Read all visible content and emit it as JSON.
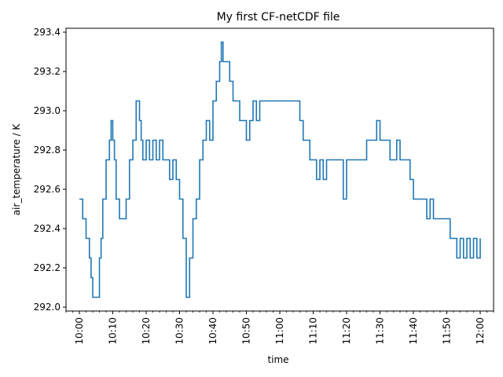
{
  "chart_data": {
    "type": "line",
    "title": "My first CF-netCDF file",
    "xlabel": "time",
    "ylabel": "air_temperature / K",
    "xlim": [
      "09:56",
      "12:04"
    ],
    "ylim": [
      291.98,
      293.42
    ],
    "grid": false,
    "x_ticks": [
      "10:00",
      "10:10",
      "10:20",
      "10:30",
      "10:40",
      "10:50",
      "11:00",
      "11:10",
      "11:20",
      "11:30",
      "11:40",
      "11:50",
      "12:00"
    ],
    "y_ticks": [
      292.0,
      292.2,
      292.4,
      292.6,
      292.8,
      293.0,
      293.2,
      293.4
    ],
    "series": [
      {
        "color": "#1f77b4",
        "points": [
          [
            "10:00",
            292.55
          ],
          [
            "10:01",
            292.45
          ],
          [
            "10:02",
            292.35
          ],
          [
            "10:03",
            292.25
          ],
          [
            "10:03.5",
            292.15
          ],
          [
            "10:04",
            292.05
          ],
          [
            "10:05",
            292.05
          ],
          [
            "10:06",
            292.25
          ],
          [
            "10:06.5",
            292.35
          ],
          [
            "10:07",
            292.55
          ],
          [
            "10:08",
            292.75
          ],
          [
            "10:09",
            292.85
          ],
          [
            "10:09.5",
            292.95
          ],
          [
            "10:10",
            292.85
          ],
          [
            "10:10.5",
            292.75
          ],
          [
            "10:11",
            292.55
          ],
          [
            "10:12",
            292.45
          ],
          [
            "10:13",
            292.45
          ],
          [
            "10:14",
            292.55
          ],
          [
            "10:15",
            292.75
          ],
          [
            "10:16",
            292.85
          ],
          [
            "10:17",
            293.05
          ],
          [
            "10:18",
            292.95
          ],
          [
            "10:18.5",
            292.85
          ],
          [
            "10:19",
            292.75
          ],
          [
            "10:20",
            292.85
          ],
          [
            "10:21",
            292.75
          ],
          [
            "10:22",
            292.85
          ],
          [
            "10:23",
            292.75
          ],
          [
            "10:24",
            292.85
          ],
          [
            "10:25",
            292.75
          ],
          [
            "10:26",
            292.75
          ],
          [
            "10:27",
            292.65
          ],
          [
            "10:28",
            292.75
          ],
          [
            "10:29",
            292.65
          ],
          [
            "10:30",
            292.55
          ],
          [
            "10:31",
            292.35
          ],
          [
            "10:32",
            292.05
          ],
          [
            "10:33",
            292.25
          ],
          [
            "10:34",
            292.45
          ],
          [
            "10:35",
            292.55
          ],
          [
            "10:36",
            292.75
          ],
          [
            "10:37",
            292.85
          ],
          [
            "10:38",
            292.95
          ],
          [
            "10:39",
            292.85
          ],
          [
            "10:40",
            293.05
          ],
          [
            "10:41",
            293.15
          ],
          [
            "10:42",
            293.25
          ],
          [
            "10:42.5",
            293.35
          ],
          [
            "10:43",
            293.25
          ],
          [
            "10:44",
            293.25
          ],
          [
            "10:45",
            293.15
          ],
          [
            "10:46",
            293.05
          ],
          [
            "10:47",
            293.05
          ],
          [
            "10:48",
            292.95
          ],
          [
            "10:49",
            292.95
          ],
          [
            "10:50",
            292.85
          ],
          [
            "10:51",
            292.95
          ],
          [
            "10:52",
            293.05
          ],
          [
            "10:53",
            292.95
          ],
          [
            "10:54",
            293.05
          ],
          [
            "11:00",
            293.05
          ],
          [
            "11:05",
            293.05
          ],
          [
            "11:06",
            292.95
          ],
          [
            "11:07",
            292.85
          ],
          [
            "11:08",
            292.85
          ],
          [
            "11:09",
            292.75
          ],
          [
            "11:10",
            292.75
          ],
          [
            "11:11",
            292.65
          ],
          [
            "11:12",
            292.75
          ],
          [
            "11:13",
            292.65
          ],
          [
            "11:14",
            292.75
          ],
          [
            "11:18",
            292.75
          ],
          [
            "11:19",
            292.55
          ],
          [
            "11:20",
            292.75
          ],
          [
            "11:25",
            292.75
          ],
          [
            "11:26",
            292.85
          ],
          [
            "11:27",
            292.85
          ],
          [
            "11:28",
            292.85
          ],
          [
            "11:29",
            292.95
          ],
          [
            "11:30",
            292.85
          ],
          [
            "11:31",
            292.85
          ],
          [
            "11:32",
            292.85
          ],
          [
            "11:33",
            292.75
          ],
          [
            "11:34",
            292.75
          ],
          [
            "11:35",
            292.85
          ],
          [
            "11:36",
            292.75
          ],
          [
            "11:38",
            292.75
          ],
          [
            "11:39",
            292.65
          ],
          [
            "11:40",
            292.55
          ],
          [
            "11:41",
            292.55
          ],
          [
            "11:42",
            292.55
          ],
          [
            "11:43",
            292.55
          ],
          [
            "11:44",
            292.45
          ],
          [
            "11:45",
            292.55
          ],
          [
            "11:46",
            292.45
          ],
          [
            "11:47",
            292.45
          ],
          [
            "11:50",
            292.45
          ],
          [
            "11:51",
            292.35
          ],
          [
            "11:52",
            292.35
          ],
          [
            "11:53",
            292.25
          ],
          [
            "11:54",
            292.35
          ],
          [
            "11:55",
            292.25
          ],
          [
            "11:56",
            292.35
          ],
          [
            "11:57",
            292.25
          ],
          [
            "11:58",
            292.35
          ],
          [
            "11:59",
            292.25
          ],
          [
            "12:00",
            292.35
          ]
        ]
      }
    ]
  }
}
